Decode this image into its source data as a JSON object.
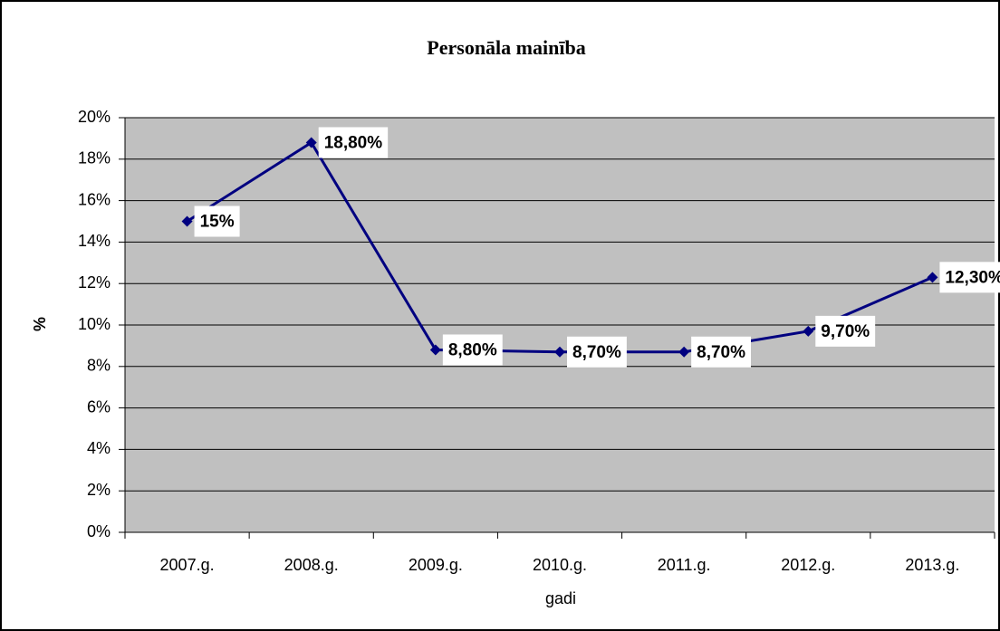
{
  "chart_data": {
    "type": "line",
    "title": "Personāla mainība",
    "x_label": "gadi",
    "y_label": "%",
    "categories": [
      "2007.g.",
      "2008.g.",
      "2009.g.",
      "2010.g.",
      "2011.g.",
      "2012.g.",
      "2013.g."
    ],
    "series": [
      {
        "name": "Personāla mainība",
        "color": "#000080",
        "values": [
          15,
          18.8,
          8.8,
          8.7,
          8.7,
          9.7,
          12.3
        ],
        "value_labels": [
          "15%",
          "18,80%",
          "8,80%",
          "8,70%",
          "8,70%",
          "9,70%",
          "12,30%"
        ]
      }
    ],
    "ylim": [
      0,
      20
    ],
    "yticks": [
      {
        "value": 0,
        "label": "0%"
      },
      {
        "value": 2,
        "label": "2%"
      },
      {
        "value": 4,
        "label": "4%"
      },
      {
        "value": 6,
        "label": "6%"
      },
      {
        "value": 8,
        "label": "8%"
      },
      {
        "value": 10,
        "label": "10%"
      },
      {
        "value": 12,
        "label": "12%"
      },
      {
        "value": 14,
        "label": "14%"
      },
      {
        "value": 16,
        "label": "16%"
      },
      {
        "value": 18,
        "label": "18%"
      },
      {
        "value": 20,
        "label": "20%"
      }
    ],
    "grid": true
  }
}
